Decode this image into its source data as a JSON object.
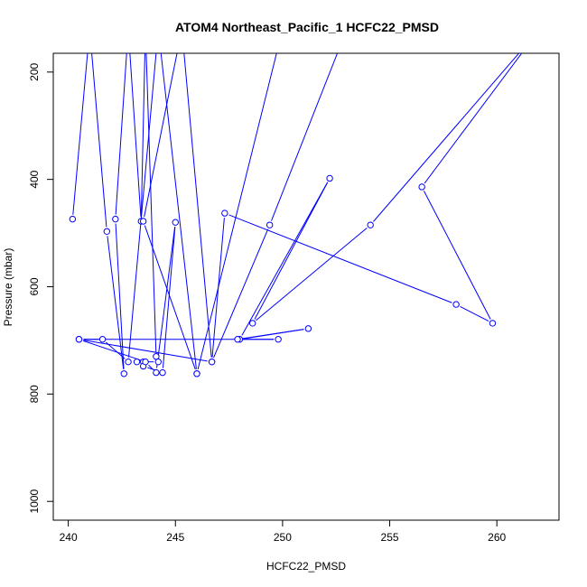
{
  "chart_data": {
    "type": "line",
    "title": "ATOM4 Northeast_Pacific_1 HCFC22_PMSD",
    "xlabel": "HCFC22_PMSD",
    "ylabel": "Pressure (mbar)",
    "xlim": [
      239.3,
      262.9
    ],
    "ylim": [
      1035,
      165
    ],
    "y_axis_reversed": true,
    "x_ticks": [
      240,
      245,
      250,
      255,
      260
    ],
    "y_ticks": [
      200,
      400,
      600,
      800,
      1000
    ],
    "grid": false,
    "legend": "none",
    "series_color": "#0000ff",
    "marker": "open-circle",
    "series": [
      {
        "points": [
          [
            240.2,
            474
          ],
          [
            241.0,
            120
          ],
          [
            241.8,
            497
          ],
          [
            242.6,
            762
          ],
          [
            242.2,
            474
          ],
          [
            242.8,
            120
          ],
          [
            243.4,
            478
          ],
          [
            243.6,
            120
          ],
          [
            244.1,
            730
          ],
          [
            244.2,
            740
          ],
          [
            243.5,
            740
          ],
          [
            243.2,
            740
          ],
          [
            243.5,
            748
          ],
          [
            244.4,
            760
          ],
          [
            245.0,
            480
          ],
          [
            244.1,
            760
          ],
          [
            243.6,
            740
          ],
          [
            240.5,
            698
          ],
          [
            241.6,
            698
          ],
          [
            242.8,
            740
          ],
          [
            244.2,
            120
          ],
          [
            246.0,
            762
          ],
          [
            243.5,
            478
          ],
          [
            245.3,
            120
          ],
          [
            246.7,
            740
          ],
          [
            247.3,
            463
          ],
          [
            258.1,
            633
          ],
          [
            259.8,
            668
          ],
          [
            256.5,
            414
          ],
          [
            262.0,
            120
          ],
          [
            254.1,
            485
          ],
          [
            248.6,
            668
          ],
          [
            252.2,
            398
          ],
          [
            248.0,
            698
          ],
          [
            251.2,
            678
          ],
          [
            247.9,
            698
          ],
          [
            249.8,
            698
          ],
          [
            240.5,
            698
          ],
          [
            246.7,
            740
          ],
          [
            249.4,
            485
          ],
          [
            253.0,
            120
          ],
          [
            250.0,
            120
          ],
          [
            246.0,
            762
          ]
        ]
      }
    ]
  }
}
